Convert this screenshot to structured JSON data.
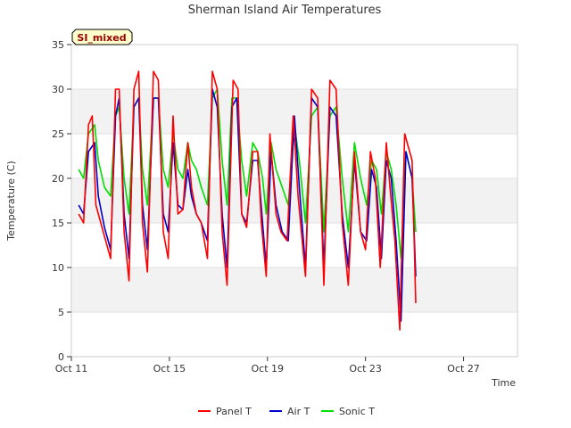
{
  "chart_data": {
    "type": "line",
    "title": "Sherman Island Air Temperatures",
    "xlabel": "Time",
    "ylabel": "Temperature (C)",
    "site_label": "SI_mixed",
    "ylim": [
      0,
      35
    ],
    "yticks": [
      0,
      5,
      10,
      15,
      20,
      25,
      30,
      35
    ],
    "xlim": [
      11.0,
      29.2
    ],
    "xticks": [
      {
        "value": 11,
        "label": "Oct 11"
      },
      {
        "value": 15,
        "label": "Oct 15"
      },
      {
        "value": 19,
        "label": "Oct 19"
      },
      {
        "value": 23,
        "label": "Oct 23"
      },
      {
        "value": 27,
        "label": "Oct 27"
      }
    ],
    "grid": "alternating horizontal bands",
    "legend_position": "bottom",
    "series": [
      {
        "name": "Panel T",
        "color": "#ff0000",
        "x": [
          11.3,
          11.5,
          11.7,
          11.85,
          12.0,
          12.3,
          12.6,
          12.8,
          12.95,
          13.15,
          13.35,
          13.55,
          13.75,
          13.9,
          14.1,
          14.35,
          14.55,
          14.75,
          14.95,
          15.15,
          15.35,
          15.55,
          15.75,
          15.9,
          16.1,
          16.3,
          16.55,
          16.75,
          16.95,
          17.15,
          17.35,
          17.6,
          17.8,
          17.95,
          18.15,
          18.4,
          18.6,
          18.75,
          18.95,
          19.1,
          19.35,
          19.55,
          19.8,
          20.05,
          20.25,
          20.55,
          20.8,
          21.05,
          21.3,
          21.55,
          21.8,
          22.05,
          22.3,
          22.55,
          22.8,
          23.0,
          23.2,
          23.4,
          23.6,
          23.85,
          24.0,
          24.2,
          24.4,
          24.6,
          24.9,
          25.05
        ],
        "y": [
          16,
          15,
          26,
          27,
          17,
          14,
          11,
          30,
          30,
          14,
          8.5,
          30,
          32,
          15,
          9.5,
          32,
          31,
          14,
          11,
          27,
          16,
          16.5,
          24,
          19,
          16,
          15,
          11,
          32,
          30,
          14,
          8,
          31,
          30,
          16,
          14.5,
          23,
          23,
          15,
          9,
          25,
          16,
          14,
          13,
          27,
          18,
          9,
          30,
          29,
          8,
          31,
          30,
          15,
          8,
          23,
          14,
          12,
          23,
          20,
          10,
          24,
          19,
          13,
          3,
          25,
          22,
          6
        ]
      },
      {
        "name": "Air T",
        "color": "#0000cc",
        "x": [
          11.3,
          11.5,
          11.7,
          11.95,
          12.1,
          12.35,
          12.6,
          12.8,
          12.95,
          13.15,
          13.35,
          13.55,
          13.75,
          13.9,
          14.1,
          14.35,
          14.55,
          14.75,
          14.95,
          15.15,
          15.35,
          15.55,
          15.75,
          15.9,
          16.1,
          16.3,
          16.55,
          16.75,
          16.95,
          17.15,
          17.35,
          17.55,
          17.75,
          17.95,
          18.15,
          18.4,
          18.6,
          18.8,
          18.95,
          19.15,
          19.35,
          19.6,
          19.85,
          20.1,
          20.3,
          20.55,
          20.8,
          21.05,
          21.3,
          21.55,
          21.8,
          22.05,
          22.3,
          22.55,
          22.8,
          23.05,
          23.25,
          23.45,
          23.65,
          23.85,
          24.05,
          24.25,
          24.45,
          24.65,
          24.9,
          25.05
        ],
        "y": [
          17,
          16,
          23,
          24,
          18,
          14.5,
          12,
          27,
          29,
          16,
          11,
          28,
          29,
          17,
          12,
          29,
          29,
          16,
          14,
          24,
          17,
          16.5,
          21,
          18,
          16,
          15,
          13,
          30,
          28,
          16,
          10,
          28,
          29,
          16,
          15,
          22,
          22,
          15,
          10,
          23,
          17,
          14,
          13,
          27,
          19,
          10,
          29,
          28,
          10,
          28,
          27,
          16,
          10,
          22,
          14,
          13,
          21,
          19,
          11,
          22,
          20,
          13,
          4,
          23,
          20,
          9
        ]
      },
      {
        "name": "Sonic T",
        "color": "#00dd00",
        "x": [
          11.3,
          11.5,
          11.7,
          11.95,
          12.1,
          12.35,
          12.6,
          12.8,
          12.95,
          13.15,
          13.35,
          13.55,
          13.75,
          13.9,
          14.1,
          14.35,
          14.55,
          14.75,
          14.95,
          15.15,
          15.35,
          15.55,
          15.75,
          15.9,
          16.1,
          16.3,
          16.55,
          16.75,
          16.95,
          17.15,
          17.35,
          17.55,
          17.75,
          17.95,
          18.15,
          18.4,
          18.6,
          18.8,
          18.95,
          19.15,
          19.35,
          19.6,
          19.85,
          20.1,
          20.3,
          20.55,
          20.8,
          21.05,
          21.3,
          21.55,
          21.8,
          22.05,
          22.3,
          22.55,
          22.8,
          23.05,
          23.25,
          23.45,
          23.65,
          23.85,
          24.05,
          24.25,
          24.45,
          24.65,
          24.9,
          25.05
        ],
        "y": [
          21,
          20,
          25,
          26,
          22,
          19,
          18,
          27,
          28,
          20,
          16,
          28,
          29,
          21,
          17,
          29,
          29,
          21,
          19,
          25,
          21,
          20,
          24,
          22,
          21,
          19,
          17,
          29,
          30,
          22,
          17,
          29,
          29,
          22,
          18,
          24,
          23,
          20,
          16,
          24,
          21,
          19,
          17,
          26,
          22,
          15,
          27,
          28,
          14,
          27,
          28,
          20,
          14,
          24,
          20,
          17,
          22,
          21,
          16,
          23,
          21,
          17,
          11,
          23,
          20,
          14
        ]
      }
    ]
  }
}
